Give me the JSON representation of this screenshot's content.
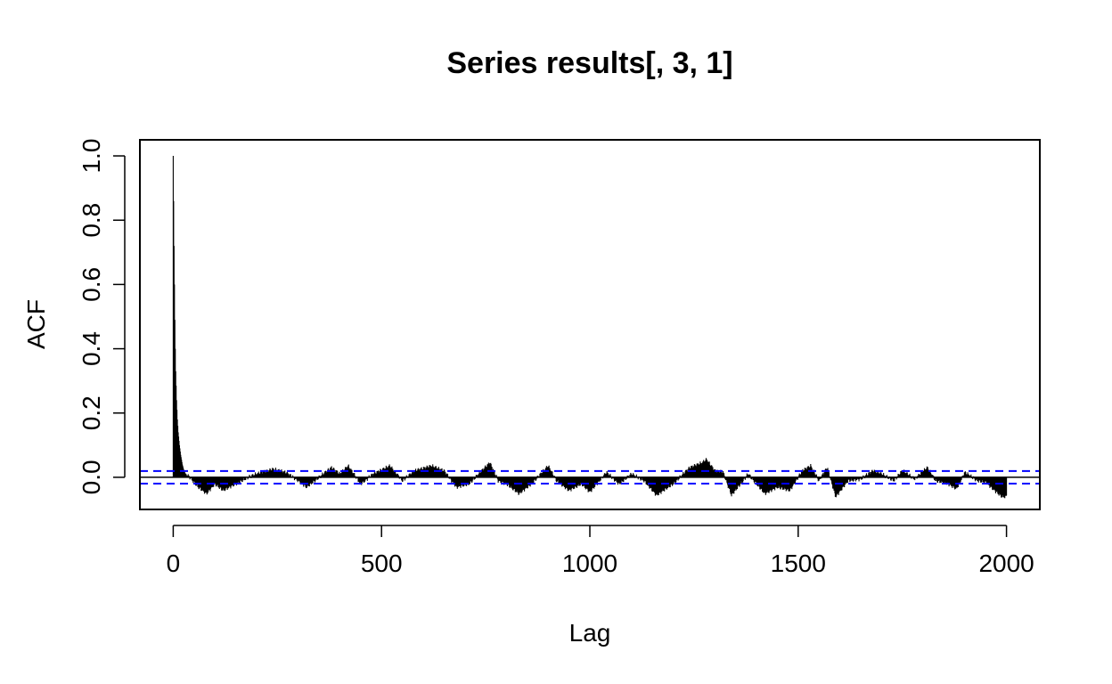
{
  "chart_data": {
    "type": "bar",
    "title": "Series  results[, 3, 1]",
    "xlabel": "Lag",
    "ylabel": "ACF",
    "xlim": [
      -80,
      2080
    ],
    "ylim": [
      -0.1,
      1.05
    ],
    "x_ticks": [
      0,
      500,
      1000,
      1500,
      2000
    ],
    "x_tick_labels": [
      "0",
      "500",
      "1000",
      "1500",
      "2000"
    ],
    "y_ticks": [
      0.0,
      0.2,
      0.4,
      0.6,
      0.8,
      1.0
    ],
    "y_tick_labels": [
      "0.0",
      "0.2",
      "0.4",
      "0.6",
      "0.8",
      "1.0"
    ],
    "max_lag": 2000,
    "confidence_bound": 0.0196,
    "initial_decay": {
      "lag": [
        0,
        1,
        2,
        3,
        4,
        5,
        6,
        8,
        10,
        12,
        15,
        18,
        22,
        26,
        30
      ],
      "acf": [
        1.0,
        0.86,
        0.72,
        0.6,
        0.49,
        0.4,
        0.33,
        0.24,
        0.18,
        0.14,
        0.1,
        0.07,
        0.04,
        0.02,
        0.01
      ]
    },
    "knots": {
      "lag": [
        30,
        40,
        60,
        80,
        100,
        120,
        150,
        180,
        200,
        240,
        270,
        300,
        320,
        340,
        380,
        400,
        420,
        450,
        480,
        520,
        550,
        580,
        620,
        650,
        680,
        710,
        760,
        780,
        800,
        830,
        860,
        900,
        920,
        950,
        980,
        1000,
        1040,
        1070,
        1100,
        1130,
        1160,
        1200,
        1240,
        1270,
        1280,
        1300,
        1320,
        1340,
        1380,
        1420,
        1450,
        1480,
        1510,
        1530,
        1550,
        1570,
        1590,
        1620,
        1650,
        1680,
        1700,
        1730,
        1750,
        1780,
        1810,
        1830,
        1860,
        1880,
        1900,
        1930,
        1950,
        1980,
        1990,
        2000
      ],
      "acf": [
        0.01,
        0.0,
        -0.03,
        -0.05,
        -0.02,
        -0.04,
        -0.02,
        0.0,
        0.01,
        0.025,
        0.015,
        -0.01,
        -0.03,
        -0.01,
        0.03,
        0.01,
        0.035,
        -0.02,
        0.01,
        0.035,
        -0.01,
        0.02,
        0.035,
        0.02,
        -0.03,
        -0.02,
        0.045,
        -0.01,
        -0.02,
        -0.05,
        -0.02,
        0.035,
        -0.01,
        -0.04,
        -0.02,
        -0.045,
        0.015,
        -0.02,
        0.01,
        -0.01,
        -0.055,
        -0.02,
        0.03,
        0.045,
        0.055,
        0.02,
        0.015,
        -0.055,
        0.01,
        -0.05,
        -0.03,
        -0.04,
        0.02,
        0.035,
        -0.01,
        0.03,
        -0.06,
        -0.01,
        -0.005,
        0.02,
        0.01,
        -0.01,
        0.02,
        -0.005,
        0.03,
        -0.01,
        -0.02,
        -0.035,
        0.015,
        -0.01,
        -0.015,
        -0.05,
        -0.06,
        -0.06
      ]
    },
    "colors": {
      "bars": "#000000",
      "confidence": "#0000ff",
      "zero_line": "#000000",
      "frame": "#000000",
      "background": "#ffffff"
    }
  }
}
